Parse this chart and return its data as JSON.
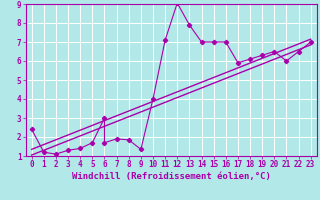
{
  "xlabel": "Windchill (Refroidissement éolien,°C)",
  "xlim": [
    -0.5,
    23.5
  ],
  "ylim": [
    1,
    9
  ],
  "xticks": [
    0,
    1,
    2,
    3,
    4,
    5,
    6,
    7,
    8,
    9,
    10,
    11,
    12,
    13,
    14,
    15,
    16,
    17,
    18,
    19,
    20,
    21,
    22,
    23
  ],
  "yticks": [
    1,
    2,
    3,
    4,
    5,
    6,
    7,
    8,
    9
  ],
  "background_color": "#b2e8e8",
  "line_color": "#aa00aa",
  "grid_color": "#ffffff",
  "scatter_x": [
    0,
    1,
    2,
    3,
    4,
    5,
    6,
    6,
    7,
    8,
    9,
    10,
    11,
    12,
    13,
    14,
    15,
    16,
    17,
    18,
    19,
    20,
    21,
    22,
    23
  ],
  "scatter_y": [
    2.4,
    1.2,
    1.1,
    1.3,
    1.4,
    1.7,
    3.0,
    1.7,
    1.9,
    1.85,
    1.35,
    4.0,
    7.1,
    9.05,
    7.9,
    7.0,
    7.0,
    7.0,
    5.9,
    6.1,
    6.3,
    6.5,
    6.0,
    6.5,
    7.0
  ],
  "trend1_x": [
    0,
    23
  ],
  "trend1_y": [
    1.05,
    6.85
  ],
  "trend2_x": [
    0,
    23
  ],
  "trend2_y": [
    1.35,
    7.15
  ],
  "font_size": 6.5,
  "tick_font_size": 5.5
}
